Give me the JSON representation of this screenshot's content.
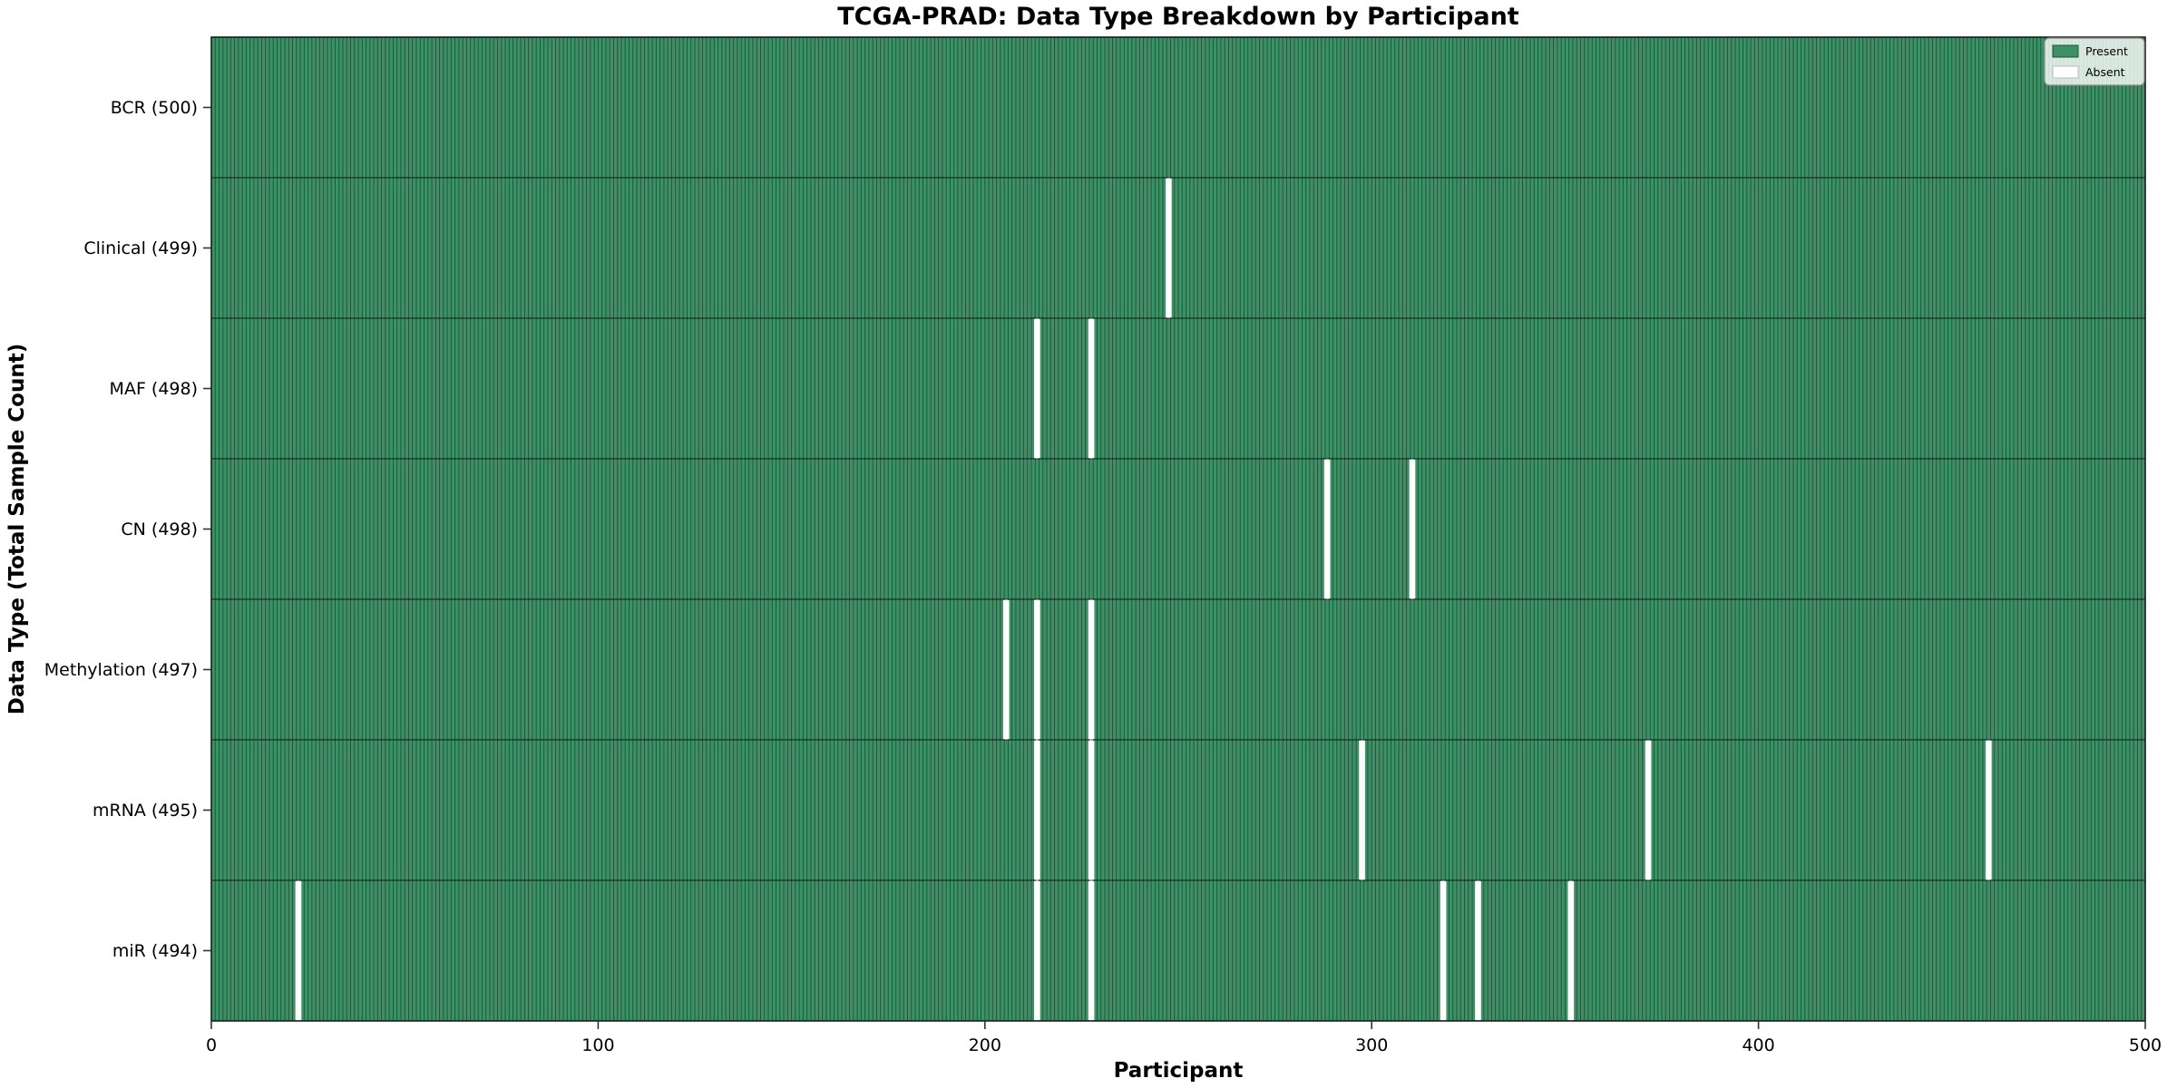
{
  "title": "TCGA-PRAD: Data Type Breakdown by Participant",
  "xlabel": "Participant",
  "ylabel": "Data Type (Total Sample Count)",
  "legend": {
    "present_label": "Present",
    "absent_label": "Absent"
  },
  "colors": {
    "present": "#3E9166",
    "cell_edge": "rgba(0,0,0,0.45)",
    "absent": "#ffffff",
    "row_separator": "rgba(0,0,0,0.55)",
    "plot_border": "#1a1a1a",
    "legend_bg": "rgba(255,255,255,0.8)",
    "legend_border": "#8a8a8a"
  },
  "chart_data": {
    "type": "heatmap",
    "title": "TCGA-PRAD: Data Type Breakdown by Participant",
    "xlabel": "Participant",
    "ylabel": "Data Type (Total Sample Count)",
    "legend_entries": [
      "Present",
      "Absent"
    ],
    "legend_position": "upper right",
    "n_participants": 500,
    "x_axis": {
      "min": 0,
      "max": 500,
      "ticks": [
        0,
        100,
        200,
        300,
        400,
        500
      ]
    },
    "rows": [
      {
        "label": "BCR (500)",
        "name": "BCR",
        "total": 500,
        "absent_participants": []
      },
      {
        "label": "Clinical (499)",
        "name": "Clinical",
        "total": 499,
        "absent_participants": [
          247
        ]
      },
      {
        "label": "MAF (498)",
        "name": "MAF",
        "total": 498,
        "absent_participants": [
          213,
          227
        ]
      },
      {
        "label": "CN (498)",
        "name": "CN",
        "total": 498,
        "absent_participants": [
          288,
          310
        ]
      },
      {
        "label": "Methylation (497)",
        "name": "Methylation",
        "total": 497,
        "absent_participants": [
          205,
          213,
          227
        ]
      },
      {
        "label": "mRNA (495)",
        "name": "mRNA",
        "total": 495,
        "absent_participants": [
          213,
          227,
          297,
          371,
          459
        ]
      },
      {
        "label": "miR (494)",
        "name": "miR",
        "total": 494,
        "absent_participants": [
          22,
          213,
          227,
          318,
          327,
          351
        ]
      }
    ]
  }
}
